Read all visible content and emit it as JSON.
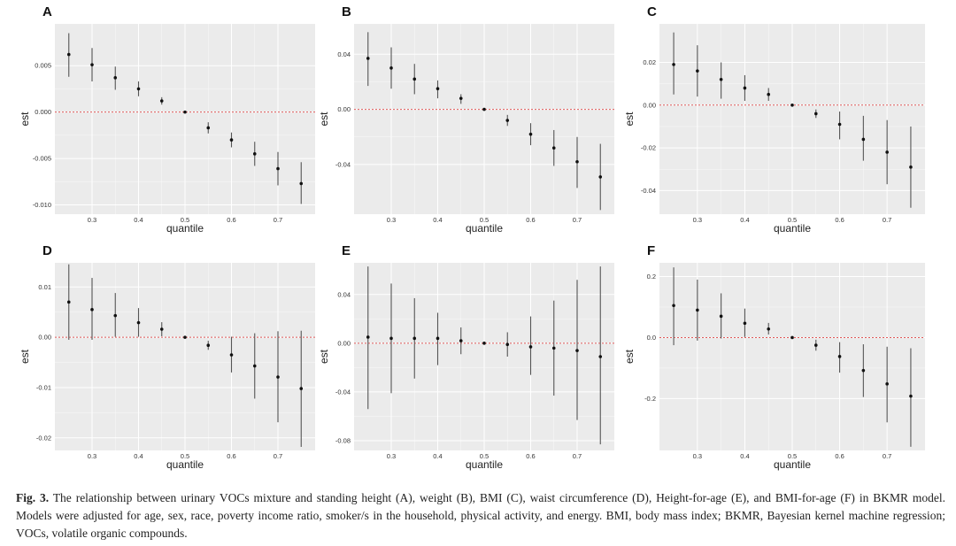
{
  "accent_colors": {
    "panel_bg": "#ebebeb",
    "grid": "#ffffff",
    "zero_line": "#e05a5a",
    "point": "#111111",
    "errorbar": "#555555"
  },
  "chart_data": [
    {
      "panel": "A",
      "type": "scatter",
      "xlabel": "quantile",
      "ylabel": "est",
      "x": [
        0.25,
        0.3,
        0.35,
        0.4,
        0.45,
        0.5,
        0.55,
        0.6,
        0.65,
        0.7,
        0.75
      ],
      "est": [
        0.0062,
        0.0051,
        0.0037,
        0.0025,
        0.0012,
        0.0,
        -0.0017,
        -0.003,
        -0.0045,
        -0.0061,
        -0.0077
      ],
      "lower": [
        0.0038,
        0.0033,
        0.0024,
        0.0017,
        0.0008,
        0.0,
        -0.0023,
        -0.0038,
        -0.0058,
        -0.0079,
        -0.0099
      ],
      "upper": [
        0.0085,
        0.0069,
        0.0049,
        0.0033,
        0.0016,
        0.0,
        -0.0011,
        -0.0022,
        -0.0032,
        -0.0043,
        -0.0054
      ],
      "xticks": [
        0.3,
        0.4,
        0.5,
        0.6,
        0.7
      ],
      "xtick_labels": [
        "0.3",
        "0.4",
        "0.5",
        "0.6",
        "0.7"
      ],
      "yticks": [
        0.005,
        0.0,
        -0.005,
        -0.01
      ],
      "ytick_labels": [
        "0.005",
        "0.000",
        "-0.005",
        "-0.010"
      ],
      "xlim": [
        0.22,
        0.78
      ],
      "ylim": [
        -0.011,
        0.0095
      ]
    },
    {
      "panel": "B",
      "type": "scatter",
      "xlabel": "quantile",
      "ylabel": "est",
      "x": [
        0.25,
        0.3,
        0.35,
        0.4,
        0.45,
        0.5,
        0.55,
        0.6,
        0.65,
        0.7,
        0.75
      ],
      "est": [
        0.037,
        0.03,
        0.022,
        0.015,
        0.008,
        0.0,
        -0.008,
        -0.018,
        -0.028,
        -0.038,
        -0.049
      ],
      "lower": [
        0.017,
        0.015,
        0.011,
        0.008,
        0.004,
        0.0,
        -0.012,
        -0.026,
        -0.041,
        -0.057,
        -0.073
      ],
      "upper": [
        0.056,
        0.045,
        0.033,
        0.021,
        0.011,
        0.0,
        -0.004,
        -0.01,
        -0.015,
        -0.02,
        -0.025
      ],
      "xticks": [
        0.3,
        0.4,
        0.5,
        0.6,
        0.7
      ],
      "xtick_labels": [
        "0.3",
        "0.4",
        "0.5",
        "0.6",
        "0.7"
      ],
      "yticks": [
        0.04,
        0.0,
        -0.04
      ],
      "ytick_labels": [
        "0.04",
        "0.00",
        "-0.04"
      ],
      "xlim": [
        0.22,
        0.78
      ],
      "ylim": [
        -0.076,
        0.062
      ]
    },
    {
      "panel": "C",
      "type": "scatter",
      "xlabel": "quantile",
      "ylabel": "est",
      "x": [
        0.25,
        0.3,
        0.35,
        0.4,
        0.45,
        0.5,
        0.55,
        0.6,
        0.65,
        0.7,
        0.75
      ],
      "est": [
        0.019,
        0.016,
        0.012,
        0.008,
        0.005,
        0.0,
        -0.004,
        -0.009,
        -0.016,
        -0.022,
        -0.029
      ],
      "lower": [
        0.005,
        0.004,
        0.003,
        0.002,
        0.002,
        0.0,
        -0.006,
        -0.016,
        -0.026,
        -0.037,
        -0.048
      ],
      "upper": [
        0.034,
        0.028,
        0.02,
        0.014,
        0.008,
        0.0,
        -0.002,
        -0.003,
        -0.005,
        -0.007,
        -0.01
      ],
      "xticks": [
        0.3,
        0.4,
        0.5,
        0.6,
        0.7
      ],
      "xtick_labels": [
        "0.3",
        "0.4",
        "0.5",
        "0.6",
        "0.7"
      ],
      "yticks": [
        0.02,
        0.0,
        -0.02,
        -0.04
      ],
      "ytick_labels": [
        "0.02",
        "0.00",
        "-0.02",
        "-0.04"
      ],
      "xlim": [
        0.22,
        0.78
      ],
      "ylim": [
        -0.051,
        0.038
      ]
    },
    {
      "panel": "D",
      "type": "scatter",
      "xlabel": "quantile",
      "ylabel": "est",
      "x": [
        0.25,
        0.3,
        0.35,
        0.4,
        0.45,
        0.5,
        0.55,
        0.6,
        0.65,
        0.7,
        0.75
      ],
      "est": [
        0.007,
        0.0055,
        0.0043,
        0.0029,
        0.0016,
        0.0,
        -0.0016,
        -0.0035,
        -0.0057,
        -0.0079,
        -0.0102
      ],
      "lower": [
        -0.0005,
        -0.0005,
        0.0001,
        0.0001,
        0.0002,
        0.0,
        -0.0025,
        -0.007,
        -0.0122,
        -0.0169,
        -0.0218
      ],
      "upper": [
        0.0145,
        0.0118,
        0.0088,
        0.0058,
        0.003,
        0.0,
        -0.0007,
        0.0001,
        0.0008,
        0.0012,
        0.0013
      ],
      "xticks": [
        0.3,
        0.4,
        0.5,
        0.6,
        0.7
      ],
      "xtick_labels": [
        "0.3",
        "0.4",
        "0.5",
        "0.6",
        "0.7"
      ],
      "yticks": [
        0.01,
        0.0,
        -0.01,
        -0.02
      ],
      "ytick_labels": [
        "0.01",
        "0.00",
        "-0.01",
        "-0.02"
      ],
      "xlim": [
        0.22,
        0.78
      ],
      "ylim": [
        -0.0225,
        0.0148
      ]
    },
    {
      "panel": "E",
      "type": "scatter",
      "xlabel": "quantile",
      "ylabel": "est",
      "x": [
        0.25,
        0.3,
        0.35,
        0.4,
        0.45,
        0.5,
        0.55,
        0.6,
        0.65,
        0.7,
        0.75
      ],
      "est": [
        0.005,
        0.004,
        0.004,
        0.004,
        0.002,
        0.0,
        -0.001,
        -0.003,
        -0.004,
        -0.006,
        -0.011
      ],
      "lower": [
        -0.054,
        -0.041,
        -0.029,
        -0.018,
        -0.009,
        0.0,
        -0.011,
        -0.026,
        -0.043,
        -0.063,
        -0.083
      ],
      "upper": [
        0.063,
        0.049,
        0.037,
        0.025,
        0.013,
        0.0,
        0.009,
        0.022,
        0.035,
        0.052,
        0.063
      ],
      "xticks": [
        0.3,
        0.4,
        0.5,
        0.6,
        0.7
      ],
      "xtick_labels": [
        "0.3",
        "0.4",
        "0.5",
        "0.6",
        "0.7"
      ],
      "yticks": [
        0.04,
        0.0,
        -0.04,
        -0.08
      ],
      "ytick_labels": [
        "0.04",
        "0.00",
        "-0.04",
        "-0.08"
      ],
      "xlim": [
        0.22,
        0.78
      ],
      "ylim": [
        -0.088,
        0.066
      ]
    },
    {
      "panel": "F",
      "type": "scatter",
      "xlabel": "quantile",
      "ylabel": "est",
      "x": [
        0.25,
        0.3,
        0.35,
        0.4,
        0.45,
        0.5,
        0.55,
        0.6,
        0.65,
        0.7,
        0.75
      ],
      "est": [
        0.105,
        0.09,
        0.07,
        0.047,
        0.028,
        0.0,
        -0.025,
        -0.062,
        -0.108,
        -0.152,
        -0.192
      ],
      "lower": [
        -0.025,
        -0.01,
        -0.003,
        0.002,
        0.01,
        0.0,
        -0.043,
        -0.115,
        -0.195,
        -0.278,
        -0.358
      ],
      "upper": [
        0.23,
        0.19,
        0.145,
        0.095,
        0.048,
        0.0,
        -0.007,
        -0.015,
        -0.022,
        -0.03,
        -0.035
      ],
      "xticks": [
        0.3,
        0.4,
        0.5,
        0.6,
        0.7
      ],
      "xtick_labels": [
        "0.3",
        "0.4",
        "0.5",
        "0.6",
        "0.7"
      ],
      "yticks": [
        0.2,
        0.0,
        -0.2
      ],
      "ytick_labels": [
        "0.2",
        "0.0",
        "-0.2"
      ],
      "xlim": [
        0.22,
        0.78
      ],
      "ylim": [
        -0.37,
        0.245
      ]
    }
  ],
  "caption": {
    "label": "Fig. 3.",
    "text": "The relationship between urinary VOCs mixture and standing height (A), weight (B), BMI (C), waist circumference (D), Height-for-age (E), and BMI-for-age (F) in BKMR model. Models were adjusted for age, sex, race, poverty income ratio, smoker/s in the household, physical activity, and energy. BMI, body mass index; BKMR, Bayesian kernel machine regression; VOCs, volatile organic compounds."
  }
}
